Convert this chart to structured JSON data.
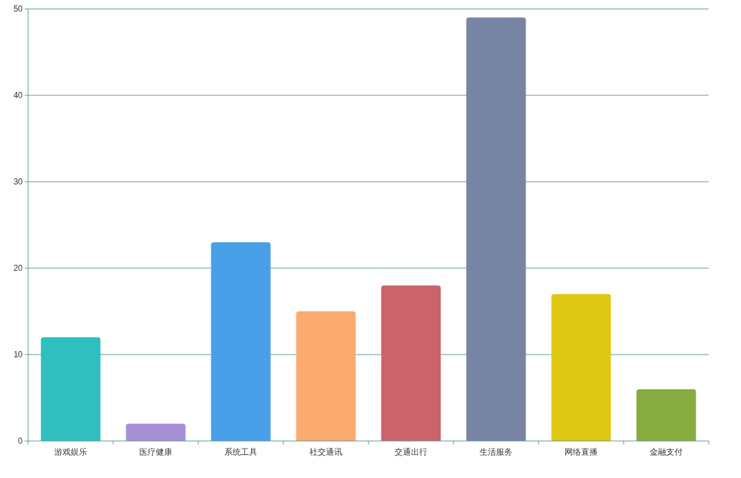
{
  "chart_data": {
    "type": "bar",
    "categories": [
      "游戏娱乐",
      "医疗健康",
      "系统工具",
      "社交通讯",
      "交通出行",
      "生活服务",
      "网络直播",
      "金融支付"
    ],
    "values": [
      12,
      2,
      23,
      15,
      18,
      49,
      17,
      6
    ],
    "colors": [
      "#2ebfbe",
      "#a78fd8",
      "#4aa0e8",
      "#fcab6e",
      "#cc626b",
      "#7784a4",
      "#dfc813",
      "#87ab3f"
    ],
    "ylim": [
      0,
      50
    ],
    "yticks": [
      0,
      10,
      20,
      30,
      40,
      50
    ],
    "grid": "y"
  }
}
